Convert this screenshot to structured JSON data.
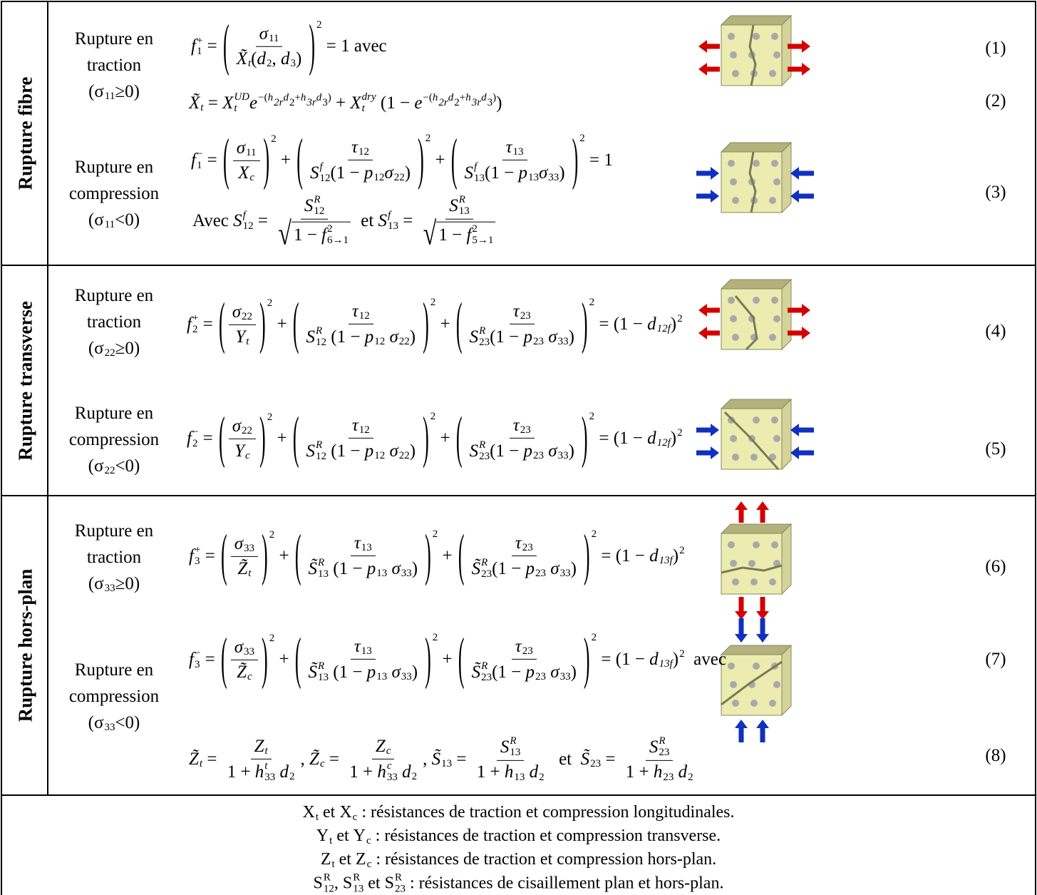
{
  "sections": [
    {
      "title": "Rupture fibre",
      "labels": [
        [
          "Rupture en",
          "traction",
          [
            "(σ",
            {
              "sub": "11"
            },
            "≥0)"
          ]
        ],
        [
          "Rupture en",
          "compression",
          [
            "(σ",
            {
              "sub": "11"
            },
            "<0)"
          ]
        ]
      ],
      "equations": [
        [
          {
            "b": "f",
            "sub": "1",
            "sup": "+"
          },
          " = ",
          {
            "paren": [
              {
                "num": [
                  {
                    "b": "σ",
                    "sub": "11"
                  }
                ],
                "den": [
                  {
                    "b": "X̃",
                    "sub": "t"
                  },
                  "(",
                  {
                    "b": "d",
                    "sub": "2"
                  },
                  ", ",
                  {
                    "b": "d",
                    "sub": "3"
                  },
                  ")"
                ]
              }
            ],
            "pow": "2"
          },
          " = 1 ",
          {
            "w": "avec"
          }
        ],
        [
          {
            "b": "X̃",
            "sub": "t"
          },
          " = ",
          {
            "b": "X",
            "sub": "t",
            "sup": "UD"
          },
          {
            "b": "e",
            "sup": [
              "−(",
              {
                "b": "h",
                "sub": "2r"
              },
              {
                "b": "d",
                "sub": "2"
              },
              "+",
              {
                "b": "h",
                "sub": "3r"
              },
              {
                "b": "d",
                "sub": "3"
              },
              ")"
            ]
          },
          " + ",
          {
            "b": "X",
            "sub": "t",
            "sup": "dry"
          },
          " (1 − ",
          {
            "b": "e",
            "sup": [
              "−(",
              {
                "b": "h",
                "sub": "2r"
              },
              {
                "b": "d",
                "sub": "2"
              },
              "+",
              {
                "b": "h",
                "sub": "3r"
              },
              {
                "b": "d",
                "sub": "3"
              },
              ")"
            ]
          },
          ")"
        ],
        [
          {
            "b": "f",
            "sub": "1",
            "sup": "−"
          },
          " = ",
          {
            "paren": [
              {
                "num": [
                  {
                    "b": "σ",
                    "sub": "11"
                  }
                ],
                "den": [
                  {
                    "b": "X",
                    "sub": "c"
                  }
                ]
              }
            ],
            "pow": "2"
          },
          " + ",
          {
            "paren": [
              {
                "num": [
                  {
                    "b": "τ",
                    "sub": "12"
                  }
                ],
                "den": [
                  {
                    "b": "S",
                    "sub": "12",
                    "sup": "f"
                  },
                  "(1 − ",
                  {
                    "b": "p",
                    "sub": "12"
                  },
                  {
                    "b": "σ",
                    "sub": "22"
                  },
                  ")"
                ]
              }
            ],
            "pow": "2"
          },
          " + ",
          {
            "paren": [
              {
                "num": [
                  {
                    "b": "τ",
                    "sub": "13"
                  }
                ],
                "den": [
                  {
                    "b": "S",
                    "sub": "13",
                    "sup": "f"
                  },
                  "(1 − ",
                  {
                    "b": "p",
                    "sub": "13"
                  },
                  {
                    "b": "σ",
                    "sub": "33"
                  },
                  ")"
                ]
              }
            ],
            "pow": "2"
          },
          " = 1"
        ],
        [
          {
            "w": "Avec "
          },
          {
            "b": "S",
            "sub": "12",
            "sup": "f"
          },
          " = ",
          {
            "num": [
              {
                "b": "S",
                "sub": "12",
                "sup": "R"
              }
            ],
            "den": [
              {
                "sqrt": [
                  "1 − ",
                  {
                    "b": "f",
                    "sub": "6→1",
                    "sup": "2"
                  }
                ]
              }
            ]
          },
          {
            "w": " et "
          },
          {
            "b": "S",
            "sub": "13",
            "sup": "f"
          },
          " = ",
          {
            "num": [
              {
                "b": "S",
                "sub": "13",
                "sup": "R"
              }
            ],
            "den": [
              {
                "sqrt": [
                  "1 − ",
                  {
                    "b": "f",
                    "sub": "5→1",
                    "sup": "2"
                  }
                ]
              }
            ]
          }
        ]
      ],
      "numbers": [
        "(1)",
        "(2)",
        "(3)"
      ]
    },
    {
      "title": "Rupture transverse",
      "labels": [
        [
          "Rupture en",
          "traction",
          [
            "(σ",
            {
              "sub": "22"
            },
            "≥0)"
          ]
        ],
        [
          "Rupture en",
          "compression",
          [
            "(σ",
            {
              "sub": "22"
            },
            "<0)"
          ]
        ]
      ],
      "equations": [
        [
          {
            "b": "f",
            "sub": "2",
            "sup": "+"
          },
          " = ",
          {
            "paren": [
              {
                "num": [
                  {
                    "b": "σ",
                    "sub": "22"
                  }
                ],
                "den": [
                  {
                    "b": "Y",
                    "sub": "t"
                  }
                ]
              }
            ],
            "pow": "2"
          },
          " + ",
          {
            "paren": [
              {
                "num": [
                  {
                    "b": "τ",
                    "sub": "12"
                  }
                ],
                "den": [
                  {
                    "b": "S",
                    "sub": "12",
                    "sup": "R"
                  },
                  " (1 − ",
                  {
                    "b": "p",
                    "sub": "12"
                  },
                  " ",
                  {
                    "b": "σ",
                    "sub": "22"
                  },
                  ")"
                ]
              }
            ],
            "pow": "2"
          },
          " + ",
          {
            "paren": [
              {
                "num": [
                  {
                    "b": "τ",
                    "sub": "23"
                  }
                ],
                "den": [
                  {
                    "b": "S",
                    "sub": "23",
                    "sup": "R"
                  },
                  "(1 − ",
                  {
                    "b": "p",
                    "sub": "23"
                  },
                  " ",
                  {
                    "b": "σ",
                    "sub": "33"
                  },
                  ")"
                ]
              }
            ],
            "pow": "2"
          },
          " = (1 − ",
          {
            "b": "d",
            "sub": "12f"
          },
          ")",
          {
            "sup": "2"
          }
        ],
        [
          {
            "b": "f",
            "sub": "2",
            "sup": "−"
          },
          " = ",
          {
            "paren": [
              {
                "num": [
                  {
                    "b": "σ",
                    "sub": "22"
                  }
                ],
                "den": [
                  {
                    "b": "Y",
                    "sub": "c"
                  }
                ]
              }
            ],
            "pow": "2"
          },
          " + ",
          {
            "paren": [
              {
                "num": [
                  {
                    "b": "τ",
                    "sub": "12"
                  }
                ],
                "den": [
                  {
                    "b": "S",
                    "sub": "12",
                    "sup": "R"
                  },
                  " (1 − ",
                  {
                    "b": "p",
                    "sub": "12"
                  },
                  " ",
                  {
                    "b": "σ",
                    "sub": "22"
                  },
                  ")"
                ]
              }
            ],
            "pow": "2"
          },
          " + ",
          {
            "paren": [
              {
                "num": [
                  {
                    "b": "τ",
                    "sub": "23"
                  }
                ],
                "den": [
                  {
                    "b": "S",
                    "sub": "23",
                    "sup": "R"
                  },
                  "(1 − ",
                  {
                    "b": "p",
                    "sub": "23"
                  },
                  " ",
                  {
                    "b": "σ",
                    "sub": "33"
                  },
                  ")"
                ]
              }
            ],
            "pow": "2"
          },
          " = (1 − ",
          {
            "b": "d",
            "sub": "12f"
          },
          ")",
          {
            "sup": "2"
          }
        ]
      ],
      "numbers": [
        "(4)",
        "(5)"
      ]
    },
    {
      "title": "Rupture hors-plan",
      "labels": [
        [
          "Rupture en",
          "traction",
          [
            "(σ",
            {
              "sub": "33"
            },
            "≥0)"
          ]
        ],
        [
          "Rupture en",
          "compression",
          [
            "(σ",
            {
              "sub": "33"
            },
            "<0)"
          ]
        ]
      ],
      "equations": [
        [
          {
            "b": "f",
            "sub": "3",
            "sup": "+"
          },
          " = ",
          {
            "paren": [
              {
                "num": [
                  {
                    "b": "σ",
                    "sub": "33"
                  }
                ],
                "den": [
                  {
                    "b": "Z̃",
                    "sub": "t"
                  }
                ]
              }
            ],
            "pow": "2"
          },
          " + ",
          {
            "paren": [
              {
                "num": [
                  {
                    "b": "τ",
                    "sub": "13"
                  }
                ],
                "den": [
                  {
                    "b": "S̃",
                    "sub": "13",
                    "sup": "R"
                  },
                  " (1 − ",
                  {
                    "b": "p",
                    "sub": "13"
                  },
                  " ",
                  {
                    "b": "σ",
                    "sub": "33"
                  },
                  ")"
                ]
              }
            ],
            "pow": "2"
          },
          " + ",
          {
            "paren": [
              {
                "num": [
                  {
                    "b": "τ",
                    "sub": "23"
                  }
                ],
                "den": [
                  {
                    "b": "S̃",
                    "sub": "23",
                    "sup": "R"
                  },
                  "(1 − ",
                  {
                    "b": "p",
                    "sub": "23"
                  },
                  " ",
                  {
                    "b": "σ",
                    "sub": "33"
                  },
                  ")"
                ]
              }
            ],
            "pow": "2"
          },
          " = (1 − ",
          {
            "b": "d",
            "sub": "13f"
          },
          ")",
          {
            "sup": "2"
          }
        ],
        [
          {
            "b": "f",
            "sub": "3",
            "sup": "−"
          },
          " = ",
          {
            "paren": [
              {
                "num": [
                  {
                    "b": "σ",
                    "sub": "33"
                  }
                ],
                "den": [
                  {
                    "b": "Z̃",
                    "sub": "c"
                  }
                ]
              }
            ],
            "pow": "2"
          },
          " + ",
          {
            "paren": [
              {
                "num": [
                  {
                    "b": "τ",
                    "sub": "13"
                  }
                ],
                "den": [
                  {
                    "b": "S̃",
                    "sub": "13",
                    "sup": "R"
                  },
                  " (1 − ",
                  {
                    "b": "p",
                    "sub": "13"
                  },
                  " ",
                  {
                    "b": "σ",
                    "sub": "33"
                  },
                  ")"
                ]
              }
            ],
            "pow": "2"
          },
          " + ",
          {
            "paren": [
              {
                "num": [
                  {
                    "b": "τ",
                    "sub": "23"
                  }
                ],
                "den": [
                  {
                    "b": "S̃",
                    "sub": "23",
                    "sup": "R"
                  },
                  "(1 − ",
                  {
                    "b": "p",
                    "sub": "23"
                  },
                  " ",
                  {
                    "b": "σ",
                    "sub": "33"
                  },
                  ")"
                ]
              }
            ],
            "pow": "2"
          },
          " = (1 − ",
          {
            "b": "d",
            "sub": "13f"
          },
          ")",
          {
            "sup": "2"
          },
          {
            "w": "  avec"
          }
        ],
        [
          {
            "b": "Z̃",
            "sub": "t"
          },
          " = ",
          {
            "num": [
              {
                "b": "Z",
                "sub": "t"
              }
            ],
            "den": [
              "1 + ",
              {
                "b": "h",
                "sub": "33",
                "sup": "t"
              },
              " ",
              {
                "b": "d",
                "sub": "2"
              }
            ]
          },
          ", ",
          {
            "b": "Z̃",
            "sub": "c"
          },
          " = ",
          {
            "num": [
              {
                "b": "Z",
                "sub": "c"
              }
            ],
            "den": [
              "1 + ",
              {
                "b": "h",
                "sub": "33",
                "sup": "c"
              },
              " ",
              {
                "b": "d",
                "sub": "2"
              }
            ]
          },
          ", ",
          {
            "b": "S̃",
            "sub": "13"
          },
          " = ",
          {
            "num": [
              {
                "b": "S",
                "sub": "13",
                "sup": "R"
              }
            ],
            "den": [
              "1 + ",
              {
                "b": "h",
                "sub": "13"
              },
              " ",
              {
                "b": "d",
                "sub": "2"
              }
            ]
          },
          {
            "w": "  et  "
          },
          {
            "b": "S̃",
            "sub": "23"
          },
          " = ",
          {
            "num": [
              {
                "b": "S",
                "sub": "23",
                "sup": "R"
              }
            ],
            "den": [
              "1 + ",
              {
                "b": "h",
                "sub": "23"
              },
              " ",
              {
                "b": "d",
                "sub": "2"
              }
            ]
          }
        ]
      ],
      "numbers": [
        "(6)",
        "(7)",
        "(8)"
      ]
    }
  ],
  "footer": [
    [
      {
        "b": "X",
        "sub": "t"
      },
      " et ",
      {
        "b": "X",
        "sub": "c"
      },
      " : résistances de traction et compression longitudinales."
    ],
    [
      {
        "b": "Y",
        "sub": "t"
      },
      " et ",
      {
        "b": "Y",
        "sub": "c"
      },
      " : résistances de traction et compression transverse."
    ],
    [
      {
        "b": "Z",
        "sub": "t"
      },
      " et ",
      {
        "b": "Z",
        "sub": "c"
      },
      " : résistances de traction et compression hors-plan."
    ],
    [
      {
        "b": "S",
        "sub": "12",
        "sup": "R"
      },
      ", ",
      {
        "b": "S",
        "sub": "13",
        "sup": "R"
      },
      " et ",
      {
        "b": "S",
        "sub": "23",
        "sup": "R"
      },
      " : résistances de cisaillement plan et hors-plan."
    ]
  ]
}
